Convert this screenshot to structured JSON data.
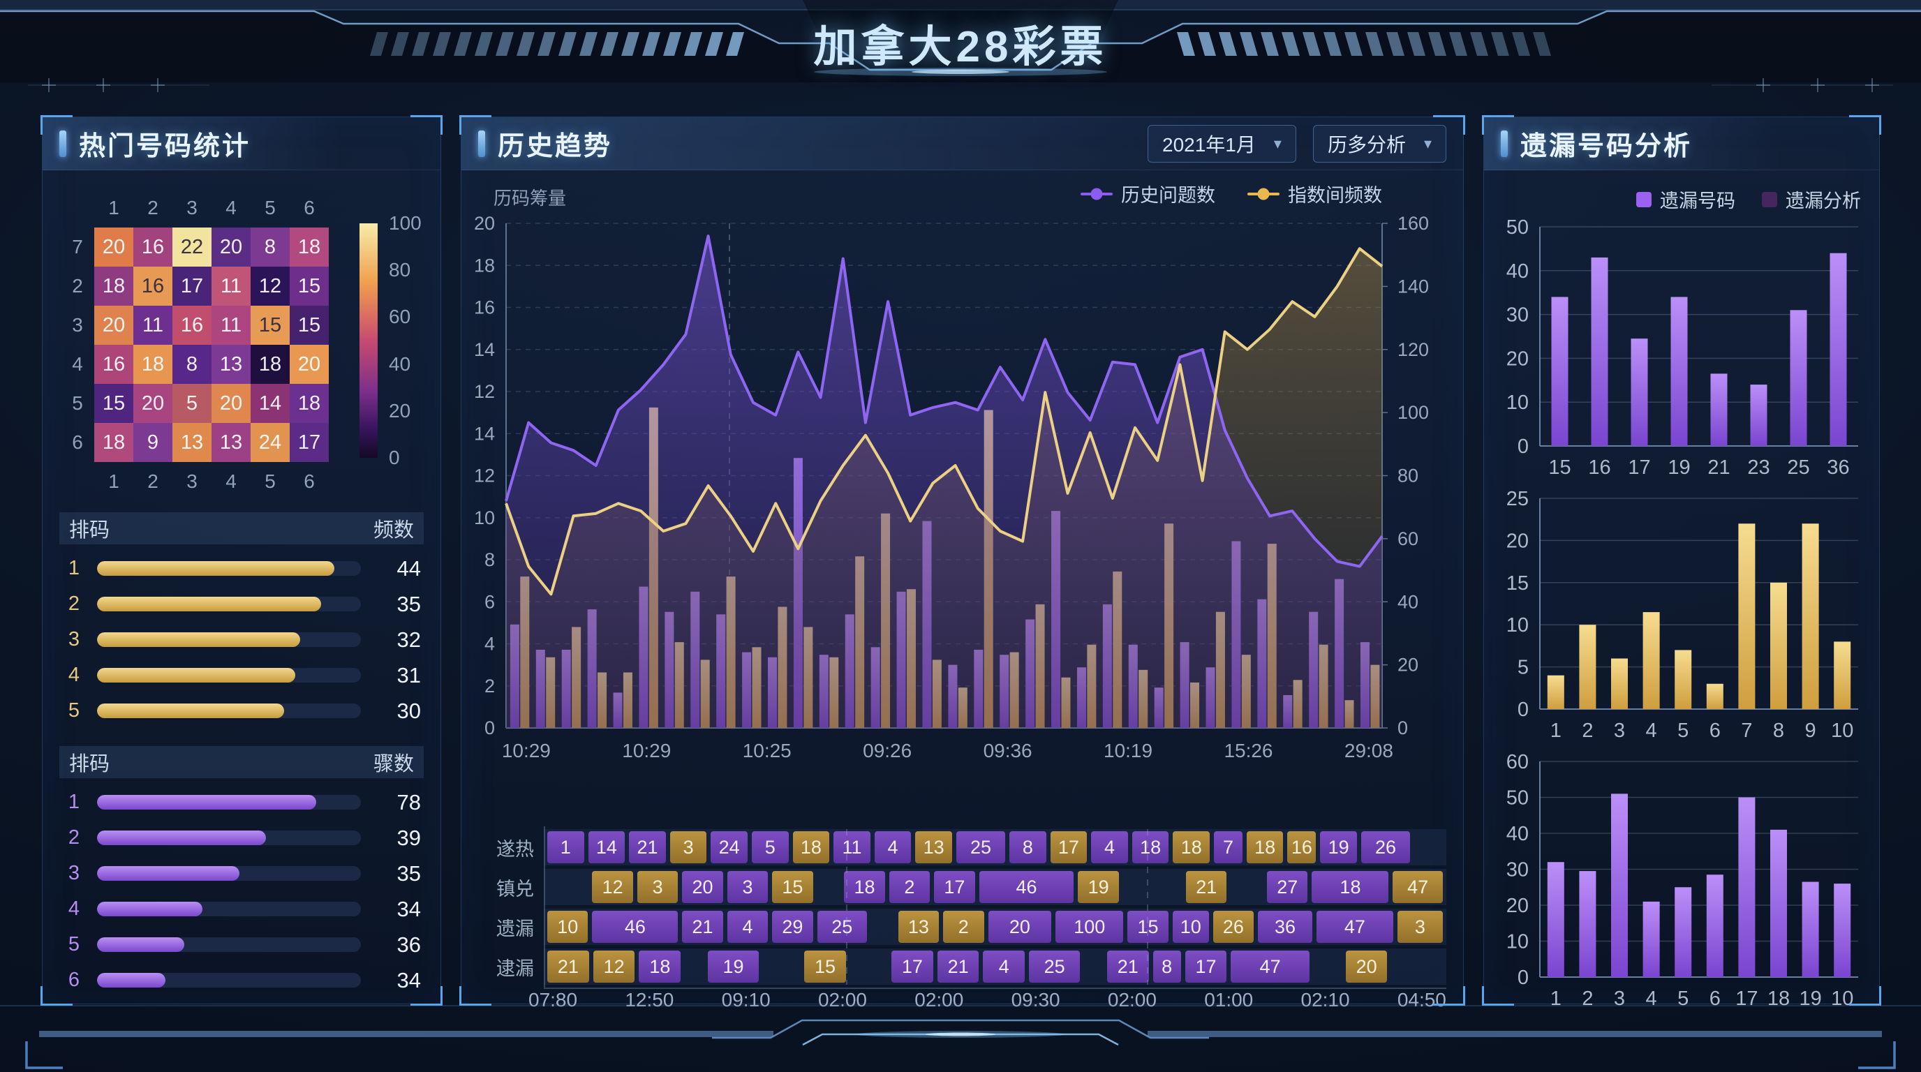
{
  "title": "加拿大28彩票",
  "panels": {
    "hot": {
      "title": "热门号码统计",
      "gold_list": {
        "col_label": "排码",
        "value_label": "频数",
        "rows": [
          {
            "idx": "1",
            "value": "44",
            "pct": 90
          },
          {
            "idx": "2",
            "value": "35",
            "pct": 85
          },
          {
            "idx": "3",
            "value": "32",
            "pct": 77
          },
          {
            "idx": "4",
            "value": "31",
            "pct": 75
          },
          {
            "idx": "5",
            "value": "30",
            "pct": 71
          }
        ]
      },
      "purple_list": {
        "col_label": "排码",
        "value_label": "骤数",
        "rows": [
          {
            "idx": "1",
            "value": "78",
            "pct": 83
          },
          {
            "idx": "2",
            "value": "39",
            "pct": 64
          },
          {
            "idx": "3",
            "value": "35",
            "pct": 54
          },
          {
            "idx": "4",
            "value": "34",
            "pct": 40
          },
          {
            "idx": "5",
            "value": "36",
            "pct": 33
          },
          {
            "idx": "6",
            "value": "34",
            "pct": 26
          }
        ]
      }
    },
    "trend": {
      "title": "历史趋势",
      "select_month": "2021年1月",
      "select_mode": "历多分析",
      "axis_unit": "历码筹量",
      "legend": [
        {
          "label": "历史问题数",
          "color": "#8a5cf0"
        },
        {
          "label": "指数间频数",
          "color": "#e8b84e"
        }
      ],
      "strip_x_labels": [
        "07:80",
        "12:50",
        "09:10",
        "02:00",
        "02:00",
        "09:30",
        "02:00",
        "01:00",
        "02:10",
        "04:50"
      ]
    },
    "miss": {
      "title": "遗漏号码分析",
      "legend": [
        {
          "label": "遗漏号码",
          "color": "#9b62f2"
        },
        {
          "label": "遗漏分析",
          "color": "#45265e"
        }
      ]
    }
  },
  "chart_data": [
    {
      "name": "hot-number-heatmap",
      "type": "heatmap",
      "col_labels": [
        "1",
        "2",
        "3",
        "4",
        "5",
        "6"
      ],
      "row_labels": [
        "7",
        "2",
        "3",
        "4",
        "5",
        "6"
      ],
      "values": [
        [
          20,
          16,
          22,
          20,
          8,
          18
        ],
        [
          18,
          16,
          17,
          11,
          12,
          15
        ],
        [
          20,
          11,
          16,
          11,
          15,
          15
        ],
        [
          16,
          18,
          8,
          13,
          18,
          20
        ],
        [
          15,
          20,
          5,
          20,
          14,
          18
        ],
        [
          18,
          9,
          13,
          13,
          24,
          17
        ]
      ],
      "cell_colors": [
        [
          "#e07b4a",
          "#a2437e",
          "#f2e39e",
          "#5b2d84",
          "#7c3b90",
          "#b2497f"
        ],
        [
          "#8e3b82",
          "#e89a55",
          "#4a2478",
          "#c05577",
          "#2c1458",
          "#6e2f8c"
        ],
        [
          "#e0824e",
          "#6e3090",
          "#c24e6e",
          "#ac4580",
          "#e89b55",
          "#45216e"
        ],
        [
          "#ad4579",
          "#e8954f",
          "#57278a",
          "#7c3a94",
          "#1e0f3e",
          "#e89851"
        ],
        [
          "#4f2580",
          "#a84480",
          "#b85a63",
          "#df874e",
          "#8c3374",
          "#6c3090"
        ],
        [
          "#b04a7c",
          "#7c3a92",
          "#df8a4c",
          "#9c4186",
          "#e39350",
          "#5c2b88"
        ]
      ],
      "scale_ticks": [
        "100",
        "80",
        "60",
        "40",
        "20",
        "0"
      ],
      "scale_range": [
        0,
        100
      ]
    },
    {
      "name": "history-trend",
      "type": "line-bar-composite",
      "x_axis_labels": [
        "10:29",
        "10:29",
        "10:25",
        "09:26",
        "09:36",
        "10:19",
        "15:26",
        "29:08"
      ],
      "left_ticks": [
        "20",
        "18",
        "16",
        "14",
        "12",
        "14",
        "12",
        "10",
        "8",
        "6",
        "4",
        "2",
        "0"
      ],
      "right_ticks": [
        "160",
        "140",
        "120",
        "100",
        "80",
        "60",
        "40",
        "20",
        "0"
      ],
      "left_max": 20,
      "series": [
        {
          "name": "历史问题数",
          "type": "line-area",
          "color": "#8f66f2",
          "values": [
            9.0,
            12.1,
            11.3,
            11.0,
            10.4,
            12.6,
            13.4,
            14.4,
            15.6,
            19.5,
            14.8,
            12.9,
            12.4,
            14.9,
            13.1,
            18.6,
            12.1,
            16.9,
            12.4,
            12.7,
            12.9,
            12.6,
            14.3,
            13.0,
            15.4,
            13.3,
            12.2,
            14.5,
            14.4,
            12.1,
            14.7,
            15.0,
            11.8,
            9.9,
            8.4,
            8.6,
            7.5,
            6.6,
            6.4,
            7.6
          ]
        },
        {
          "name": "指数间频数",
          "type": "line-area",
          "color": "#ecd084",
          "values": [
            8.9,
            6.4,
            5.3,
            8.4,
            8.5,
            8.9,
            8.6,
            7.8,
            8.1,
            9.6,
            8.4,
            7.0,
            8.9,
            7.1,
            9.0,
            10.4,
            11.6,
            10.1,
            8.2,
            9.7,
            10.4,
            8.7,
            7.8,
            7.4,
            13.3,
            9.3,
            11.7,
            9.1,
            11.9,
            10.6,
            14.4,
            9.8,
            15.7,
            15.0,
            15.8,
            16.9,
            16.3,
            17.5,
            19.0,
            18.3
          ]
        },
        {
          "name": "purple-bars",
          "type": "bar",
          "color": "#8d5ce0",
          "values": [
            4.1,
            3.1,
            3.1,
            4.7,
            1.4,
            5.6,
            4.6,
            5.4,
            4.5,
            3.0,
            2.8,
            10.7,
            2.9,
            4.5,
            3.2,
            5.4,
            8.2,
            2.5,
            3.1,
            2.9,
            4.3,
            8.6,
            2.4,
            4.9,
            3.3,
            1.6,
            3.4,
            2.4,
            7.4,
            5.1,
            1.3,
            4.6,
            5.9,
            3.4
          ]
        },
        {
          "name": "gold-bars",
          "type": "bar",
          "color": "#dcb85e",
          "values": [
            6.0,
            2.8,
            4.0,
            2.2,
            2.2,
            12.7,
            3.4,
            2.7,
            6.0,
            3.2,
            4.8,
            4.0,
            2.8,
            6.8,
            8.5,
            5.5,
            2.7,
            1.6,
            12.6,
            3.0,
            4.9,
            2.0,
            3.3,
            6.2,
            2.3,
            8.1,
            1.8,
            4.6,
            2.9,
            7.3,
            1.9,
            3.3,
            1.1,
            2.5
          ]
        }
      ],
      "marker_line_x_frac": 0.255
    },
    {
      "name": "trend-strip-table",
      "type": "table",
      "rows": [
        {
          "label": "遂热",
          "cells": [
            {
              "t": "1",
              "c": "p",
              "w": 1
            },
            {
              "t": "14",
              "c": "p",
              "w": 1
            },
            {
              "t": "21",
              "c": "p",
              "w": 1
            },
            {
              "t": "3",
              "c": "g",
              "w": 1
            },
            {
              "t": "24",
              "c": "p",
              "w": 1
            },
            {
              "t": "5",
              "c": "p",
              "w": 1
            },
            {
              "t": "18",
              "c": "g",
              "w": 1
            },
            {
              "t": "11",
              "c": "p",
              "w": 1
            },
            {
              "t": "4",
              "c": "p",
              "w": 1
            },
            {
              "t": "13",
              "c": "g",
              "w": 1
            },
            {
              "t": "25",
              "c": "p",
              "w": 1.3
            },
            {
              "t": "8",
              "c": "p",
              "w": 1
            },
            {
              "t": "17",
              "c": "g",
              "w": 1
            },
            {
              "t": "4",
              "c": "p",
              "w": 1
            },
            {
              "t": "18",
              "c": "p",
              "w": 1
            },
            {
              "t": "18",
              "c": "g",
              "w": 1
            },
            {
              "t": "7",
              "c": "p",
              "w": 0.8
            },
            {
              "t": "18",
              "c": "g",
              "w": 1
            },
            {
              "t": "16",
              "c": "g",
              "w": 0.8
            },
            {
              "t": "19",
              "c": "p",
              "w": 1
            },
            {
              "t": "26",
              "c": "p",
              "w": 1.3
            },
            {
              "t": "",
              "c": "e",
              "w": 0.8
            }
          ]
        },
        {
          "label": "镇兑",
          "cells": [
            {
              "t": "",
              "c": "e",
              "w": 1
            },
            {
              "t": "12",
              "c": "g",
              "w": 1
            },
            {
              "t": "3",
              "c": "g",
              "w": 1
            },
            {
              "t": "20",
              "c": "p",
              "w": 1
            },
            {
              "t": "3",
              "c": "p",
              "w": 1
            },
            {
              "t": "15",
              "c": "g",
              "w": 1
            },
            {
              "t": "",
              "c": "e",
              "w": 0.6
            },
            {
              "t": "18",
              "c": "p",
              "w": 1
            },
            {
              "t": "2",
              "c": "p",
              "w": 1
            },
            {
              "t": "17",
              "c": "p",
              "w": 1
            },
            {
              "t": "46",
              "c": "p",
              "w": 2.2
            },
            {
              "t": "19",
              "c": "g",
              "w": 1
            },
            {
              "t": "",
              "c": "e",
              "w": 1.4
            },
            {
              "t": "21",
              "c": "g",
              "w": 1
            },
            {
              "t": "",
              "c": "e",
              "w": 0.8
            },
            {
              "t": "27",
              "c": "p",
              "w": 1
            },
            {
              "t": "18",
              "c": "p",
              "w": 1.8
            },
            {
              "t": "47",
              "c": "g",
              "w": 1.2
            }
          ]
        },
        {
          "label": "遗漏",
          "cells": [
            {
              "t": "10",
              "c": "g",
              "w": 1
            },
            {
              "t": "46",
              "c": "p",
              "w": 2
            },
            {
              "t": "21",
              "c": "p",
              "w": 1
            },
            {
              "t": "4",
              "c": "p",
              "w": 1
            },
            {
              "t": "29",
              "c": "p",
              "w": 1
            },
            {
              "t": "25",
              "c": "p",
              "w": 1.2
            },
            {
              "t": "",
              "c": "e",
              "w": 0.6
            },
            {
              "t": "13",
              "c": "g",
              "w": 1
            },
            {
              "t": "2",
              "c": "g",
              "w": 1
            },
            {
              "t": "20",
              "c": "p",
              "w": 1.5
            },
            {
              "t": "100",
              "c": "p",
              "w": 1.6
            },
            {
              "t": "15",
              "c": "p",
              "w": 1
            },
            {
              "t": "10",
              "c": "p",
              "w": 0.9
            },
            {
              "t": "26",
              "c": "g",
              "w": 1
            },
            {
              "t": "36",
              "c": "p",
              "w": 1.3
            },
            {
              "t": "47",
              "c": "p",
              "w": 1.8
            },
            {
              "t": "3",
              "c": "g",
              "w": 1.1
            }
          ]
        },
        {
          "label": "逮漏",
          "cells": [
            {
              "t": "21",
              "c": "g",
              "w": 1
            },
            {
              "t": "12",
              "c": "g",
              "w": 1
            },
            {
              "t": "18",
              "c": "p",
              "w": 1
            },
            {
              "t": "",
              "c": "e",
              "w": 0.5
            },
            {
              "t": "19",
              "c": "p",
              "w": 1.2
            },
            {
              "t": "",
              "c": "e",
              "w": 0.9
            },
            {
              "t": "15",
              "c": "g",
              "w": 1
            },
            {
              "t": "",
              "c": "e",
              "w": 0.9
            },
            {
              "t": "17",
              "c": "p",
              "w": 1
            },
            {
              "t": "21",
              "c": "p",
              "w": 1
            },
            {
              "t": "4",
              "c": "p",
              "w": 1
            },
            {
              "t": "25",
              "c": "p",
              "w": 1.2
            },
            {
              "t": "",
              "c": "e",
              "w": 0.5
            },
            {
              "t": "21",
              "c": "p",
              "w": 1
            },
            {
              "t": "8",
              "c": "p",
              "w": 0.7
            },
            {
              "t": "17",
              "c": "p",
              "w": 1
            },
            {
              "t": "47",
              "c": "p",
              "w": 1.8
            },
            {
              "t": "",
              "c": "e",
              "w": 0.7
            },
            {
              "t": "20",
              "c": "g",
              "w": 1
            },
            {
              "t": "",
              "c": "e",
              "w": 1.2
            }
          ]
        }
      ]
    },
    {
      "name": "missing-numbers",
      "type": "bar",
      "color": "purple",
      "categories": [
        "15",
        "16",
        "17",
        "19",
        "21",
        "23",
        "25",
        "36"
      ],
      "values": [
        34,
        43,
        24.5,
        34,
        16.5,
        14,
        31,
        44
      ],
      "y_ticks": [
        0,
        10,
        20,
        30,
        40,
        50
      ],
      "ylim": [
        0,
        50
      ]
    },
    {
      "name": "missing-gold",
      "type": "bar",
      "color": "gold",
      "categories": [
        "1",
        "2",
        "3",
        "4",
        "5",
        "6",
        "7",
        "8",
        "9",
        "10"
      ],
      "values": [
        4,
        10,
        6,
        11.5,
        7,
        3,
        22,
        15,
        22,
        8
      ],
      "y_ticks": [
        0,
        5,
        10,
        15,
        20,
        25
      ],
      "ylim": [
        0,
        25
      ]
    },
    {
      "name": "missing-purple2",
      "type": "bar",
      "color": "purple",
      "categories": [
        "1",
        "2",
        "3",
        "4",
        "5",
        "6",
        "17",
        "18",
        "19",
        "10"
      ],
      "values": [
        32,
        29.5,
        51,
        21,
        25,
        28.5,
        50,
        41,
        26.5,
        26
      ],
      "y_ticks": [
        0,
        10,
        20,
        30,
        40,
        50,
        60
      ],
      "ylim": [
        0,
        60
      ]
    }
  ]
}
